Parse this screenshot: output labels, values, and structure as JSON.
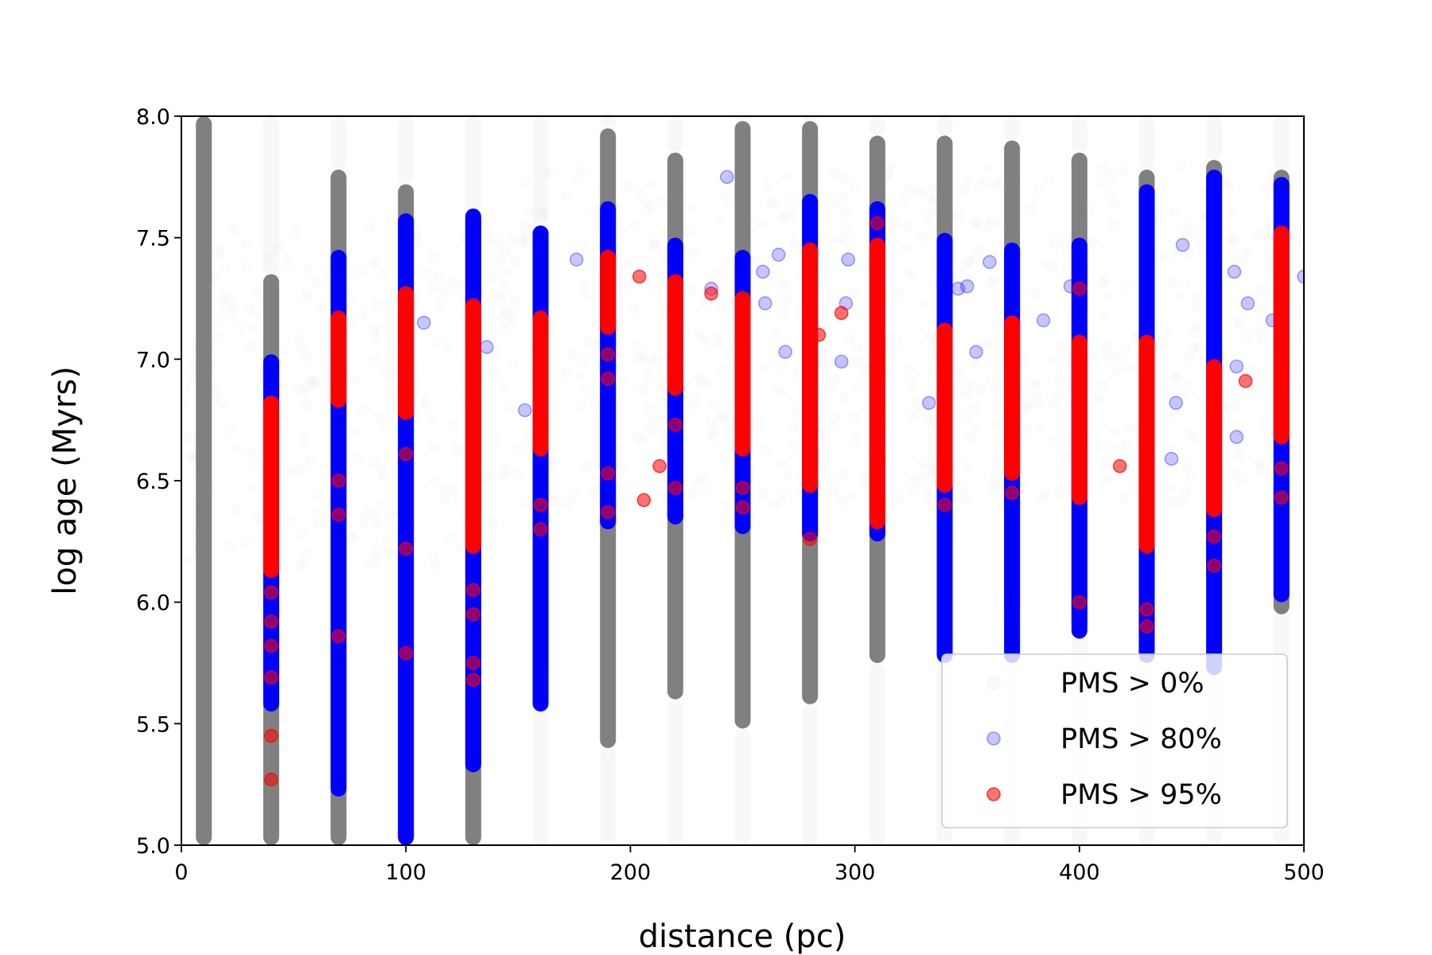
{
  "chart_data": {
    "type": "scatter",
    "xlabel": "distance (pc)",
    "ylabel": "log age (Myrs)",
    "xlim": [
      0,
      500
    ],
    "ylim": [
      5.0,
      8.0
    ],
    "x_ticks": [
      "0",
      "100",
      "200",
      "300",
      "400",
      "500"
    ],
    "y_ticks": [
      "5.0",
      "5.5",
      "6.0",
      "6.5",
      "7.0",
      "7.5",
      "8.0"
    ],
    "grid": false,
    "legend_placement": "lower-right",
    "series": [
      {
        "name": "PMS > 0%",
        "color": "#808080",
        "columns": [
          {
            "x": 10,
            "y_range": [
              5.0,
              8.0
            ]
          },
          {
            "x": 40,
            "y_range": [
              5.0,
              7.35
            ]
          },
          {
            "x": 70,
            "y_range": [
              5.0,
              7.78
            ]
          },
          {
            "x": 100,
            "y_range": [
              5.0,
              7.72
            ]
          },
          {
            "x": 130,
            "y_range": [
              5.0,
              7.6
            ]
          },
          {
            "x": 160,
            "y_range": [
              5.7,
              7.55
            ]
          },
          {
            "x": 190,
            "y_range": [
              5.4,
              7.95
            ]
          },
          {
            "x": 220,
            "y_range": [
              5.6,
              7.85
            ]
          },
          {
            "x": 250,
            "y_range": [
              5.48,
              7.98
            ]
          },
          {
            "x": 280,
            "y_range": [
              5.58,
              7.98
            ]
          },
          {
            "x": 310,
            "y_range": [
              5.75,
              7.92
            ]
          },
          {
            "x": 340,
            "y_range": [
              5.85,
              7.92
            ]
          },
          {
            "x": 370,
            "y_range": [
              5.95,
              7.9
            ]
          },
          {
            "x": 400,
            "y_range": [
              5.9,
              7.85
            ]
          },
          {
            "x": 430,
            "y_range": [
              6.05,
              7.78
            ]
          },
          {
            "x": 460,
            "y_range": [
              6.08,
              7.82
            ]
          },
          {
            "x": 490,
            "y_range": [
              5.95,
              7.78
            ]
          }
        ]
      },
      {
        "name": "PMS > 80%",
        "color": "#0000ff",
        "columns": [
          {
            "x": 40,
            "y_range": [
              5.55,
              7.02
            ]
          },
          {
            "x": 70,
            "y_range": [
              5.2,
              7.45
            ]
          },
          {
            "x": 100,
            "y_range": [
              5.0,
              7.6
            ]
          },
          {
            "x": 130,
            "y_range": [
              5.3,
              7.62
            ]
          },
          {
            "x": 160,
            "y_range": [
              5.55,
              7.55
            ]
          },
          {
            "x": 190,
            "y_range": [
              6.3,
              7.65
            ]
          },
          {
            "x": 220,
            "y_range": [
              6.32,
              7.5
            ]
          },
          {
            "x": 250,
            "y_range": [
              6.28,
              7.45
            ]
          },
          {
            "x": 280,
            "y_range": [
              6.25,
              7.68
            ]
          },
          {
            "x": 310,
            "y_range": [
              6.25,
              7.65
            ]
          },
          {
            "x": 340,
            "y_range": [
              5.75,
              7.52
            ]
          },
          {
            "x": 370,
            "y_range": [
              5.75,
              7.48
            ]
          },
          {
            "x": 400,
            "y_range": [
              5.85,
              7.5
            ]
          },
          {
            "x": 430,
            "y_range": [
              5.75,
              7.72
            ]
          },
          {
            "x": 460,
            "y_range": [
              5.7,
              7.78
            ]
          },
          {
            "x": 490,
            "y_range": [
              6.0,
              7.75
            ]
          }
        ],
        "scatter": [
          {
            "x": 108,
            "y": 7.15
          },
          {
            "x": 136,
            "y": 7.05
          },
          {
            "x": 153,
            "y": 6.79
          },
          {
            "x": 176,
            "y": 7.41
          },
          {
            "x": 236,
            "y": 7.29
          },
          {
            "x": 243,
            "y": 7.75
          },
          {
            "x": 259,
            "y": 7.36
          },
          {
            "x": 260,
            "y": 7.23
          },
          {
            "x": 266,
            "y": 7.43
          },
          {
            "x": 269,
            "y": 7.03
          },
          {
            "x": 294,
            "y": 6.99
          },
          {
            "x": 296,
            "y": 7.23
          },
          {
            "x": 297,
            "y": 7.41
          },
          {
            "x": 333,
            "y": 6.82
          },
          {
            "x": 346,
            "y": 7.29
          },
          {
            "x": 350,
            "y": 7.3
          },
          {
            "x": 354,
            "y": 7.03
          },
          {
            "x": 360,
            "y": 7.4
          },
          {
            "x": 384,
            "y": 7.16
          },
          {
            "x": 396,
            "y": 7.3
          },
          {
            "x": 441,
            "y": 6.59
          },
          {
            "x": 443,
            "y": 6.82
          },
          {
            "x": 446,
            "y": 7.47
          },
          {
            "x": 475,
            "y": 7.23
          },
          {
            "x": 469,
            "y": 7.36
          },
          {
            "x": 470,
            "y": 6.97
          },
          {
            "x": 470,
            "y": 6.68
          },
          {
            "x": 486,
            "y": 7.16
          },
          {
            "x": 500,
            "y": 7.34
          }
        ]
      },
      {
        "name": "PMS > 95%",
        "color": "#ff0000",
        "columns": [
          {
            "x": 40,
            "y_range": [
              6.1,
              6.85
            ]
          },
          {
            "x": 70,
            "y_range": [
              6.8,
              7.2
            ]
          },
          {
            "x": 100,
            "y_range": [
              6.75,
              7.3
            ]
          },
          {
            "x": 130,
            "y_range": [
              6.2,
              7.25
            ]
          },
          {
            "x": 160,
            "y_range": [
              6.6,
              7.2
            ]
          },
          {
            "x": 190,
            "y_range": [
              7.1,
              7.45
            ]
          },
          {
            "x": 220,
            "y_range": [
              6.85,
              7.35
            ]
          },
          {
            "x": 250,
            "y_range": [
              6.6,
              7.28
            ]
          },
          {
            "x": 280,
            "y_range": [
              6.45,
              7.48
            ]
          },
          {
            "x": 310,
            "y_range": [
              6.3,
              7.5
            ]
          },
          {
            "x": 340,
            "y_range": [
              6.45,
              7.15
            ]
          },
          {
            "x": 370,
            "y_range": [
              6.5,
              7.18
            ]
          },
          {
            "x": 400,
            "y_range": [
              6.4,
              7.1
            ]
          },
          {
            "x": 430,
            "y_range": [
              6.2,
              7.1
            ]
          },
          {
            "x": 460,
            "y_range": [
              6.35,
              7.0
            ]
          },
          {
            "x": 490,
            "y_range": [
              6.65,
              7.55
            ]
          }
        ],
        "scatter": [
          {
            "x": 40,
            "y": 5.27
          },
          {
            "x": 40,
            "y": 5.45
          },
          {
            "x": 40,
            "y": 5.69
          },
          {
            "x": 40,
            "y": 5.82
          },
          {
            "x": 40,
            "y": 5.92
          },
          {
            "x": 40,
            "y": 6.04
          },
          {
            "x": 70,
            "y": 5.86
          },
          {
            "x": 70,
            "y": 6.36
          },
          {
            "x": 70,
            "y": 6.5
          },
          {
            "x": 100,
            "y": 5.79
          },
          {
            "x": 100,
            "y": 6.22
          },
          {
            "x": 100,
            "y": 6.61
          },
          {
            "x": 130,
            "y": 5.68
          },
          {
            "x": 130,
            "y": 5.75
          },
          {
            "x": 130,
            "y": 5.95
          },
          {
            "x": 130,
            "y": 6.05
          },
          {
            "x": 160,
            "y": 6.3
          },
          {
            "x": 160,
            "y": 6.4
          },
          {
            "x": 190,
            "y": 6.37
          },
          {
            "x": 190,
            "y": 6.53
          },
          {
            "x": 190,
            "y": 6.92
          },
          {
            "x": 190,
            "y": 7.02
          },
          {
            "x": 204,
            "y": 7.34
          },
          {
            "x": 206,
            "y": 6.42
          },
          {
            "x": 213,
            "y": 6.56
          },
          {
            "x": 220,
            "y": 6.47
          },
          {
            "x": 220,
            "y": 6.73
          },
          {
            "x": 236,
            "y": 7.27
          },
          {
            "x": 250,
            "y": 6.39
          },
          {
            "x": 250,
            "y": 6.47
          },
          {
            "x": 280,
            "y": 6.26
          },
          {
            "x": 284,
            "y": 7.1
          },
          {
            "x": 294,
            "y": 7.19
          },
          {
            "x": 310,
            "y": 7.56
          },
          {
            "x": 340,
            "y": 6.4
          },
          {
            "x": 370,
            "y": 6.45
          },
          {
            "x": 400,
            "y": 6.0
          },
          {
            "x": 400,
            "y": 7.29
          },
          {
            "x": 418,
            "y": 6.56
          },
          {
            "x": 430,
            "y": 5.9
          },
          {
            "x": 430,
            "y": 5.97
          },
          {
            "x": 460,
            "y": 6.15
          },
          {
            "x": 460,
            "y": 6.27
          },
          {
            "x": 474,
            "y": 6.91
          },
          {
            "x": 490,
            "y": 6.43
          },
          {
            "x": 490,
            "y": 6.55
          },
          {
            "x": 490,
            "y": 7.33
          }
        ]
      }
    ]
  }
}
